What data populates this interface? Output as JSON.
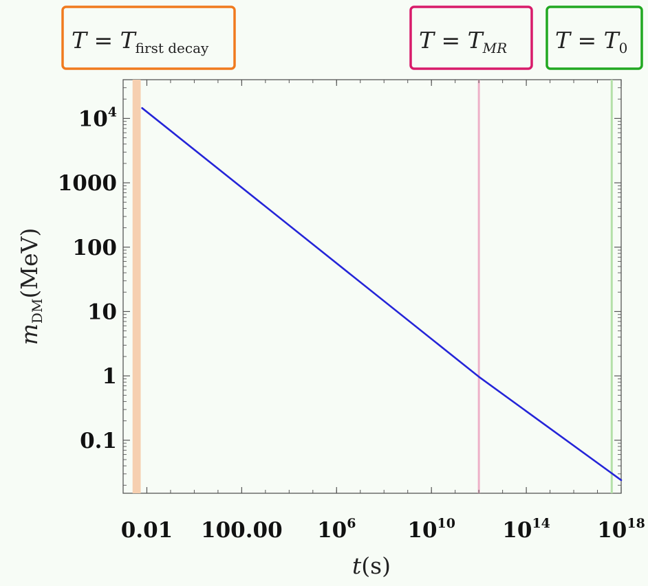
{
  "chart_data": {
    "type": "line",
    "x_scale": "log",
    "y_scale": "log",
    "xlim": [
      0.001,
      1e+18
    ],
    "ylim": [
      0.015,
      40000
    ],
    "x_ticks": [
      {
        "value": 0.01,
        "label": "0.01",
        "exp": ""
      },
      {
        "value": 100,
        "label": "100.00",
        "exp": ""
      },
      {
        "value": 1000000.0,
        "label": "10",
        "exp": "6"
      },
      {
        "value": 10000000000.0,
        "label": "10",
        "exp": "10"
      },
      {
        "value": 100000000000000.0,
        "label": "10",
        "exp": "14"
      },
      {
        "value": 1e+18,
        "label": "10",
        "exp": "18"
      }
    ],
    "y_ticks": [
      {
        "value": 0.1,
        "label": "0.1",
        "exp": ""
      },
      {
        "value": 1,
        "label": "1",
        "exp": ""
      },
      {
        "value": 10,
        "label": "10",
        "exp": ""
      },
      {
        "value": 100,
        "label": "100",
        "exp": ""
      },
      {
        "value": 1000,
        "label": "1000",
        "exp": ""
      },
      {
        "value": 10000,
        "label": "10",
        "exp": "4"
      }
    ],
    "series": [
      {
        "color": "#2424d8",
        "points": [
          {
            "x": 0.0063,
            "y": 14500
          },
          {
            "x": 1000000000000.0,
            "y": 0.97
          },
          {
            "x": 1e+18,
            "y": 0.024
          }
        ]
      }
    ],
    "vertical_markers": [
      {
        "key": "first_decay",
        "x_from": 0.0025,
        "x_to": 0.0055,
        "color": "#f6cfb0",
        "border": "#f07a1e"
      },
      {
        "key": "mr",
        "x_from": 1000000000000.0,
        "x_to": 1000000000000.0,
        "color": "#eeb1c8",
        "border": "#d81b6a"
      },
      {
        "key": "t0",
        "x_from": 4e+17,
        "x_to": 4e+17,
        "color": "#b4e0a8",
        "border": "#21a821"
      }
    ],
    "xlabel": {
      "var": "t",
      "unit": "(s)"
    },
    "ylabel": {
      "var": "m",
      "sub": "DM",
      "unit": "(MeV)"
    },
    "annotations": {
      "first_decay": {
        "lhs": "T",
        "eq": " = ",
        "rhs": "T",
        "sub": "first decay"
      },
      "mr": {
        "lhs": "T",
        "eq": " = ",
        "rhs": "T",
        "sub": "MR"
      },
      "t0": {
        "lhs": "T",
        "eq": " = ",
        "rhs": "T",
        "sub": "0"
      }
    },
    "colors": {
      "line": "#2424d8",
      "frame": "#555555",
      "background": "#f7fcf6"
    },
    "grid": false
  }
}
